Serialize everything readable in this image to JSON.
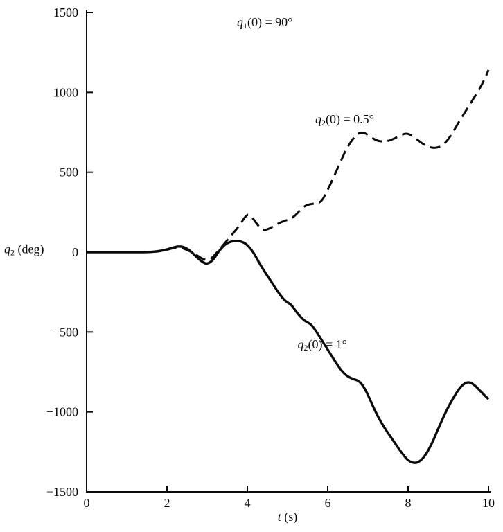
{
  "figure": {
    "background": "#ffffff",
    "ink": "#0a0a0a"
  },
  "chart_data": {
    "type": "line",
    "title_annotation": {
      "var": "q",
      "sub": "1",
      "rest": "(0) = 90°"
    },
    "xlabel": {
      "var": "t",
      "sub": "",
      "rest": " (s)"
    },
    "ylabel": {
      "var": "q",
      "sub": "2",
      "rest": " (deg)"
    },
    "xlim": [
      0,
      10
    ],
    "ylim": [
      -1500,
      1500
    ],
    "xticks": [
      0,
      2,
      4,
      6,
      8,
      10
    ],
    "yticks": [
      -1500,
      -1000,
      -500,
      0,
      500,
      1000,
      1500
    ],
    "grid": false,
    "legend": "inline-annotations",
    "series": [
      {
        "name": "q2(0) = 0.5°",
        "style": "dashed",
        "label": {
          "var": "q",
          "sub": "2",
          "rest": "(0) = 0.5°"
        },
        "label_at": {
          "x": 5.69,
          "y": 830
        },
        "points": [
          [
            0,
            0
          ],
          [
            0.6,
            0
          ],
          [
            1.2,
            0
          ],
          [
            1.6,
            0
          ],
          [
            1.9,
            8
          ],
          [
            2.1,
            22
          ],
          [
            2.3,
            32
          ],
          [
            2.5,
            15
          ],
          [
            2.7,
            -12
          ],
          [
            2.9,
            -45
          ],
          [
            3.05,
            -52
          ],
          [
            3.2,
            -15
          ],
          [
            3.4,
            45
          ],
          [
            3.6,
            105
          ],
          [
            3.8,
            165
          ],
          [
            3.95,
            225
          ],
          [
            4.05,
            240
          ],
          [
            4.2,
            190
          ],
          [
            4.35,
            140
          ],
          [
            4.5,
            140
          ],
          [
            4.7,
            170
          ],
          [
            4.9,
            195
          ],
          [
            5.05,
            205
          ],
          [
            5.2,
            230
          ],
          [
            5.35,
            275
          ],
          [
            5.5,
            298
          ],
          [
            5.7,
            305
          ],
          [
            5.85,
            315
          ],
          [
            6,
            390
          ],
          [
            6.15,
            470
          ],
          [
            6.3,
            555
          ],
          [
            6.45,
            640
          ],
          [
            6.6,
            700
          ],
          [
            6.75,
            745
          ],
          [
            6.9,
            750
          ],
          [
            7.05,
            725
          ],
          [
            7.2,
            700
          ],
          [
            7.35,
            692
          ],
          [
            7.5,
            695
          ],
          [
            7.65,
            710
          ],
          [
            7.8,
            730
          ],
          [
            7.95,
            745
          ],
          [
            8.1,
            730
          ],
          [
            8.25,
            700
          ],
          [
            8.4,
            672
          ],
          [
            8.55,
            655
          ],
          [
            8.7,
            652
          ],
          [
            8.85,
            665
          ],
          [
            9,
            705
          ],
          [
            9.15,
            765
          ],
          [
            9.3,
            830
          ],
          [
            9.45,
            890
          ],
          [
            9.6,
            950
          ],
          [
            9.75,
            1010
          ],
          [
            9.9,
            1080
          ],
          [
            10,
            1140
          ]
        ]
      },
      {
        "name": "q2(0) = 1°",
        "style": "solid",
        "label": {
          "var": "q",
          "sub": "2",
          "rest": "(0) = 1°"
        },
        "label_at": {
          "x": 5.25,
          "y": -580
        },
        "points": [
          [
            0,
            0
          ],
          [
            0.6,
            0
          ],
          [
            1.2,
            0
          ],
          [
            1.6,
            0
          ],
          [
            1.9,
            10
          ],
          [
            2.1,
            25
          ],
          [
            2.3,
            38
          ],
          [
            2.45,
            30
          ],
          [
            2.6,
            5
          ],
          [
            2.75,
            -35
          ],
          [
            2.9,
            -65
          ],
          [
            3,
            -75
          ],
          [
            3.15,
            -50
          ],
          [
            3.3,
            10
          ],
          [
            3.45,
            50
          ],
          [
            3.6,
            68
          ],
          [
            3.75,
            72
          ],
          [
            3.9,
            62
          ],
          [
            4,
            45
          ],
          [
            4.15,
            0
          ],
          [
            4.3,
            -70
          ],
          [
            4.45,
            -130
          ],
          [
            4.6,
            -185
          ],
          [
            4.75,
            -245
          ],
          [
            4.9,
            -295
          ],
          [
            5,
            -315
          ],
          [
            5.1,
            -330
          ],
          [
            5.25,
            -385
          ],
          [
            5.4,
            -425
          ],
          [
            5.5,
            -440
          ],
          [
            5.6,
            -455
          ],
          [
            5.75,
            -510
          ],
          [
            5.9,
            -570
          ],
          [
            6.05,
            -630
          ],
          [
            6.2,
            -690
          ],
          [
            6.35,
            -745
          ],
          [
            6.5,
            -780
          ],
          [
            6.65,
            -795
          ],
          [
            6.8,
            -808
          ],
          [
            6.95,
            -865
          ],
          [
            7.1,
            -950
          ],
          [
            7.25,
            -1030
          ],
          [
            7.4,
            -1095
          ],
          [
            7.55,
            -1150
          ],
          [
            7.7,
            -1205
          ],
          [
            7.85,
            -1260
          ],
          [
            8,
            -1305
          ],
          [
            8.15,
            -1322
          ],
          [
            8.3,
            -1310
          ],
          [
            8.45,
            -1265
          ],
          [
            8.6,
            -1195
          ],
          [
            8.75,
            -1105
          ],
          [
            8.9,
            -1020
          ],
          [
            9.05,
            -945
          ],
          [
            9.2,
            -880
          ],
          [
            9.35,
            -830
          ],
          [
            9.5,
            -810
          ],
          [
            9.65,
            -830
          ],
          [
            9.8,
            -870
          ],
          [
            10,
            -920
          ]
        ]
      }
    ]
  }
}
